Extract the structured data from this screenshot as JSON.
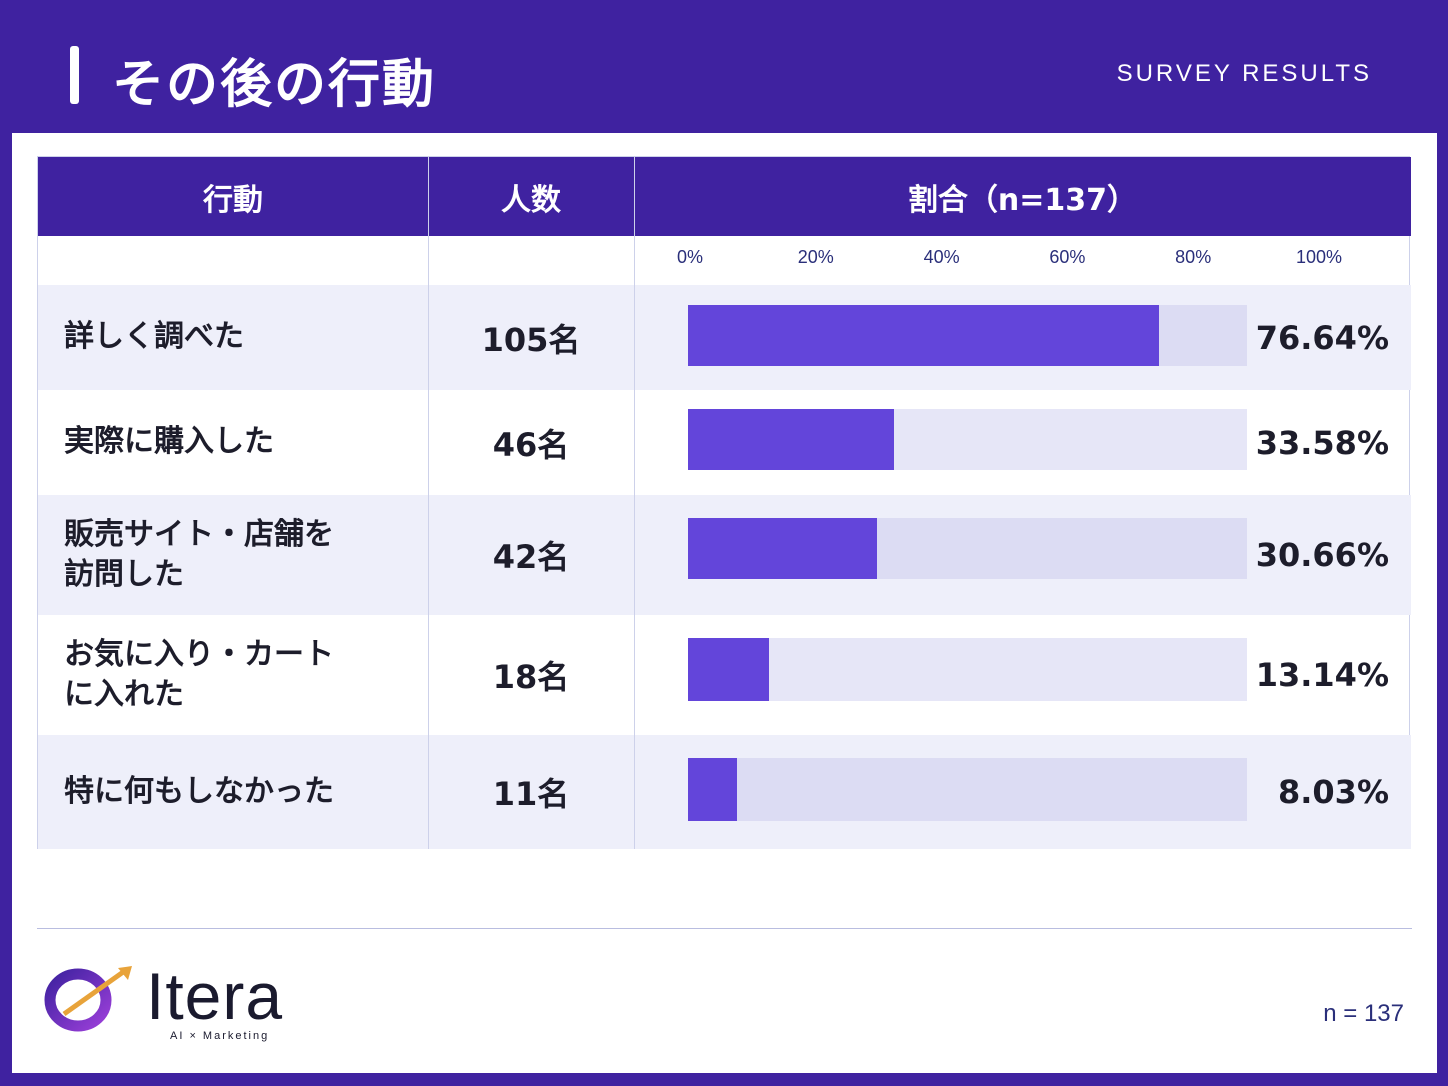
{
  "header": {
    "title": "その後の行動",
    "tag": "SURVEY RESULTS"
  },
  "table": {
    "col_action": "行動",
    "col_count": "人数",
    "col_ratio": "割合（n=137）",
    "ticks": [
      "0%",
      "20%",
      "40%",
      "60%",
      "80%",
      "100%"
    ]
  },
  "chart_data": {
    "type": "bar",
    "orientation": "horizontal",
    "title": "その後の行動",
    "categories": [
      "詳しく調べた",
      "実際に購入した",
      "販売サイト・店舗を訪問した",
      "お気に入り・カートに入れた",
      "特に何もしなかった"
    ],
    "counts": [
      "105名",
      "46名",
      "42名",
      "18名",
      "11名"
    ],
    "values": [
      76.64,
      33.58,
      30.66,
      13.14,
      8.03
    ],
    "value_labels": [
      "76.64%",
      "33.58%",
      "30.66%",
      "13.14%",
      "8.03%"
    ],
    "xlim": [
      0,
      100
    ],
    "n": 137
  },
  "rows": [
    {
      "label_lines": [
        "詳しく調べた"
      ],
      "count": "105名",
      "pct": "76.64%"
    },
    {
      "label_lines": [
        "実際に購入した"
      ],
      "count": "46名",
      "pct": "33.58%"
    },
    {
      "label_lines": [
        "販売サイト・店舗を",
        "訪問した"
      ],
      "count": "42名",
      "pct": "30.66%"
    },
    {
      "label_lines": [
        "お気に入り・カート",
        "に入れた"
      ],
      "count": "18名",
      "pct": "13.14%"
    },
    {
      "label_lines": [
        "特に何もしなかった"
      ],
      "count": "11名",
      "pct": "8.03%"
    }
  ],
  "footer": {
    "brand": "Itera",
    "brand_sub": "AI × Marketing",
    "n_label": "n = 137"
  },
  "colors": {
    "primary": "#3f22a0",
    "bar": "#6345da",
    "track": "#e6e6f7"
  }
}
